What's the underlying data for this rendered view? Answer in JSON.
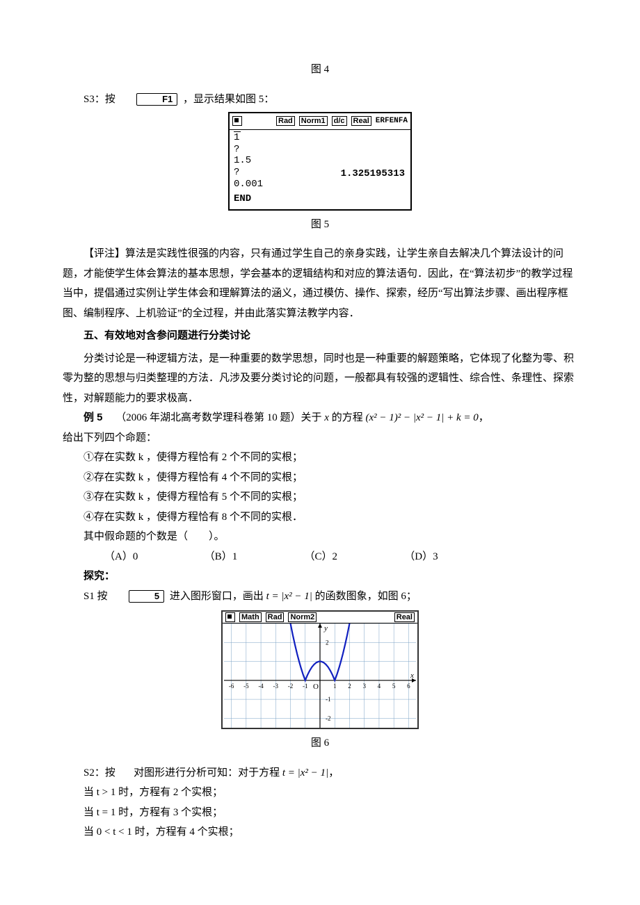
{
  "captions": {
    "fig4": "图 4",
    "fig5": "图 5",
    "fig6": "图 6"
  },
  "step_s3": {
    "prefix": "S3：按",
    "key": "F1",
    "suffix": "，显示结果如图 5："
  },
  "calc": {
    "header_tags": [
      "Rad",
      "Norm1",
      "d/c",
      "Real"
    ],
    "header_title": "ERFENFA",
    "lines": [
      "1",
      "?",
      "1.5",
      "?",
      "0.001"
    ],
    "result": "1.325195313",
    "end": "END"
  },
  "commentary": {
    "label": "【评注】",
    "text": "算法是实践性很强的内容，只有通过学生自己的亲身实践，让学生亲自去解决几个算法设计的问题，才能使学生体会算法的基本思想，学会基本的逻辑结构和对应的算法语句．因此，在“算法初步”的教学过程当中，提倡通过实例让学生体会和理解算法的涵义，通过模仿、操作、探索，经历“写出算法步骤、画出程序框图、编制程序、上机验证”的全过程，并由此落实算法教学内容．"
  },
  "section5": {
    "heading": "五、有效地对含参问题进行分类讨论",
    "para": "分类讨论是一种逻辑方法，是一种重要的数学思想，同时也是一种重要的解题策略，它体现了化整为零、积零为整的思想与归类整理的方法．凡涉及要分类讨论的问题，一般都具有较强的逻辑性、综合性、条理性、探索性，对解题能力的要求极高．"
  },
  "example5": {
    "label": "例 5",
    "source_prefix": "（2006 年湖北高考数学理科卷第 10 题）关于 ",
    "var_x": "x",
    "source_mid": " 的方程 ",
    "equation": "(x² − 1)² − |x² − 1| + k = 0",
    "source_suffix": "，",
    "tail": "给出下列四个命题：",
    "props": [
      "①存在实数 k ，使得方程恰有 2 个不同的实根；",
      "②存在实数 k ，使得方程恰有 4 个不同的实根；",
      "③存在实数 k ，使得方程恰有 5 个不同的实根；",
      "④存在实数 k ，使得方程恰有 8 个不同的实根．"
    ],
    "question": "其中假命题的个数是（　　）。",
    "options": {
      "A": "（A）0",
      "B": "（B）1",
      "C": "（C）2",
      "D": "（D）3"
    },
    "explore": "探究："
  },
  "step_s1": {
    "prefix": "S1 按",
    "key": "5",
    "mid": " 进入图形窗口，画出 ",
    "eq": "t = |x² − 1|",
    "suffix": " 的函数图象，如图 6；"
  },
  "graph": {
    "header_tags": [
      "Math",
      "Rad",
      "Norm2",
      "Real"
    ],
    "x_ticks": [
      -6,
      -5,
      -4,
      -3,
      -2,
      -1,
      1,
      2,
      3,
      4,
      5,
      6
    ],
    "y_ticks": [
      -1,
      -2,
      2
    ],
    "curve_color": "#1020c0",
    "grid_color": "#7aa0c4",
    "axis_color": "#000000",
    "bg_color": "#ffffff",
    "xlim": [
      -6.5,
      6.5
    ],
    "ylim": [
      -2.5,
      3.0
    ],
    "x_axis_label": "x",
    "y_axis_label": "y",
    "origin_label": "O",
    "curve_points": [
      [
        -2.0,
        3.0
      ],
      [
        -1.85,
        2.42
      ],
      [
        -1.7,
        1.89
      ],
      [
        -1.55,
        1.4
      ],
      [
        -1.414,
        1.0
      ],
      [
        -1.3,
        0.69
      ],
      [
        -1.15,
        0.32
      ],
      [
        -1.0,
        0.0
      ],
      [
        -0.85,
        0.28
      ],
      [
        -0.7,
        0.51
      ],
      [
        -0.55,
        0.7
      ],
      [
        -0.4,
        0.84
      ],
      [
        -0.25,
        0.94
      ],
      [
        -0.1,
        0.99
      ],
      [
        0.0,
        1.0
      ],
      [
        0.1,
        0.99
      ],
      [
        0.25,
        0.94
      ],
      [
        0.4,
        0.84
      ],
      [
        0.55,
        0.7
      ],
      [
        0.7,
        0.51
      ],
      [
        0.85,
        0.28
      ],
      [
        1.0,
        0.0
      ],
      [
        1.15,
        0.32
      ],
      [
        1.3,
        0.69
      ],
      [
        1.414,
        1.0
      ],
      [
        1.55,
        1.4
      ],
      [
        1.7,
        1.89
      ],
      [
        1.85,
        2.42
      ],
      [
        2.0,
        3.0
      ]
    ]
  },
  "step_s2": {
    "prefix": "S2：按",
    "mid": "对图形进行分析可知：对于方程 ",
    "eq": "t = |x² − 1|",
    "suffix": "，",
    "cases": [
      "当 t > 1 时，方程有 2 个实根；",
      "当 t = 1 时，方程有 3 个实根；",
      "当 0 < t < 1 时，方程有 4 个实根；"
    ]
  }
}
